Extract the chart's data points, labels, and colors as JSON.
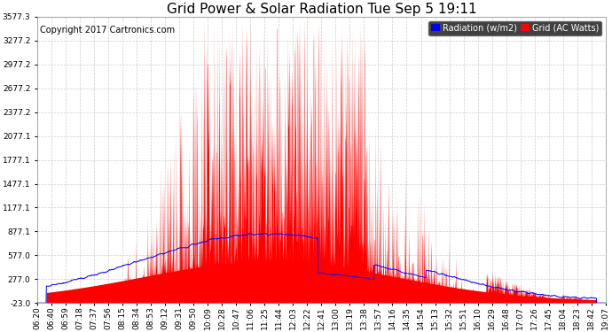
{
  "title": "Grid Power & Solar Radiation Tue Sep 5 19:11",
  "copyright": "Copyright 2017 Cartronics.com",
  "ylim": [
    -23.0,
    3577.3
  ],
  "yticks": [
    -23.0,
    277.0,
    577.0,
    877.1,
    1177.1,
    1477.1,
    1777.1,
    2077.1,
    2377.2,
    2677.2,
    2977.2,
    3277.2,
    3577.3
  ],
  "ytick_labels": [
    "-23.0",
    "277.0",
    "577.0",
    "877.1",
    "1177.1",
    "1477.1",
    "1777.1",
    "2077.1",
    "2377.2",
    "2677.2",
    "2977.2",
    "3277.2",
    "3577.3"
  ],
  "xtick_labels": [
    "06:20",
    "06:40",
    "06:59",
    "07:18",
    "07:37",
    "07:56",
    "08:15",
    "08:34",
    "08:53",
    "09:12",
    "09:31",
    "09:50",
    "10:09",
    "10:28",
    "10:47",
    "11:06",
    "11:25",
    "11:44",
    "12:03",
    "12:22",
    "12:41",
    "13:00",
    "13:19",
    "13:38",
    "13:57",
    "14:16",
    "14:35",
    "14:54",
    "15:13",
    "15:32",
    "15:51",
    "16:10",
    "16:29",
    "16:48",
    "17:07",
    "17:26",
    "17:45",
    "18:04",
    "18:23",
    "18:42",
    "19:07"
  ],
  "bg_color": "#ffffff",
  "plot_bg_color": "#ffffff",
  "grid_color": "#c8c8c8",
  "red_color": "#ff0000",
  "blue_color": "#0000ff",
  "legend_radiation_text": "Radiation (w/m2)",
  "legend_grid_text": "Grid (AC Watts)",
  "title_fontsize": 11,
  "copyright_fontsize": 7,
  "tick_fontsize": 6.5,
  "legend_fontsize": 7
}
